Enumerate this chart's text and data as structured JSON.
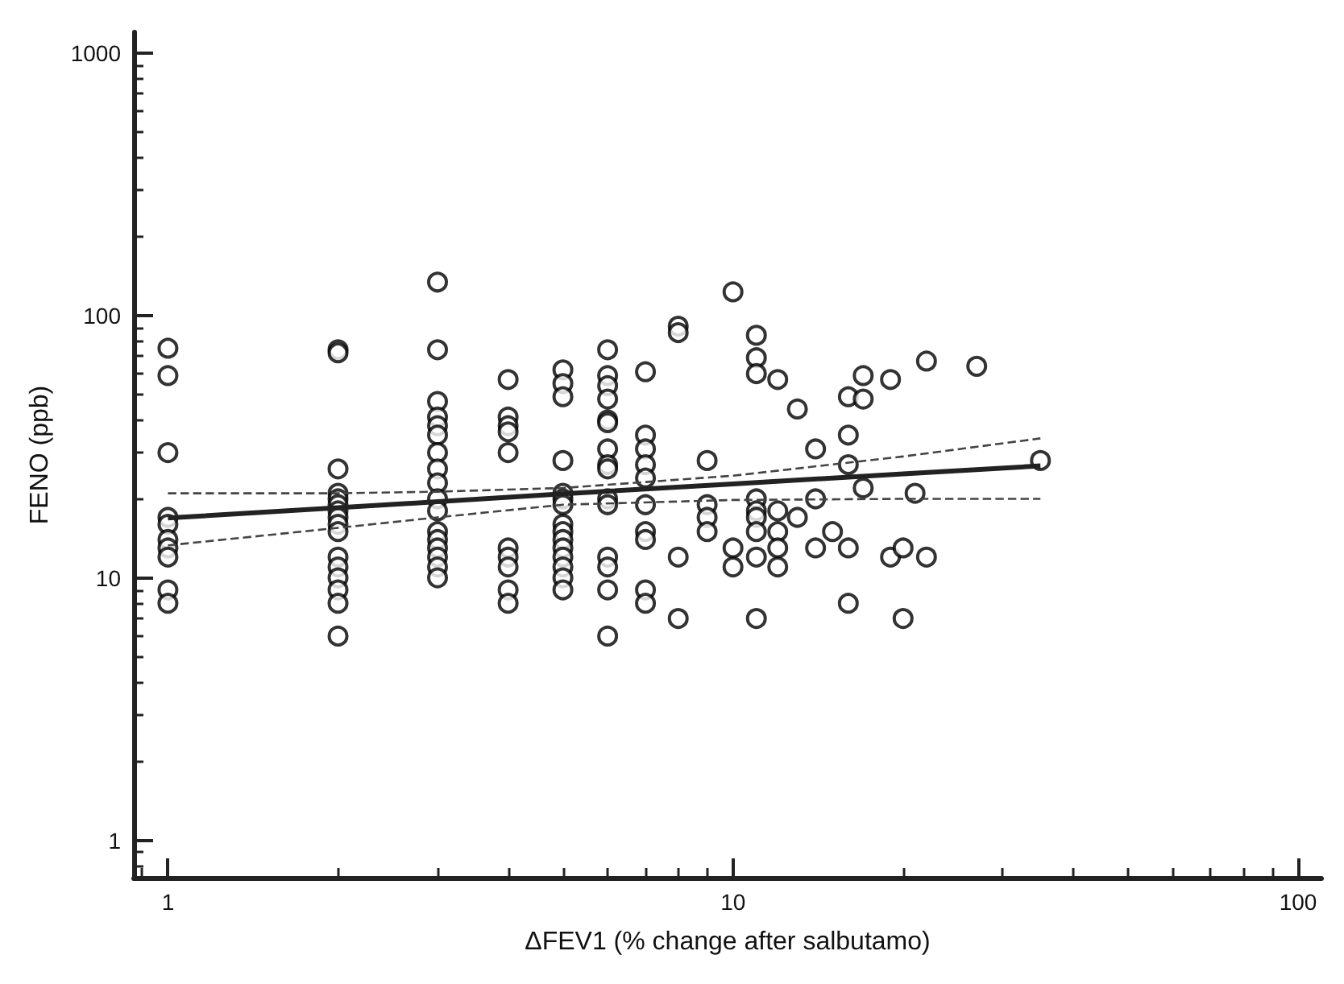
{
  "chart_data": {
    "type": "scatter",
    "xlabel": "ΔFEV1 (% change after salbutamo)",
    "ylabel": "FENO (ppb)",
    "log": "xy",
    "grid": false,
    "xlim": [
      0.87,
      110
    ],
    "xticks": [
      1,
      10,
      100
    ],
    "ylim": [
      0.72,
      1200
    ],
    "yticks": [
      1,
      10,
      100,
      1000
    ],
    "series": [
      {
        "marker": "circle",
        "color": "#000000",
        "x": [
          1,
          1,
          1,
          1,
          1,
          1,
          1,
          1,
          1,
          1,
          2,
          2,
          2,
          2,
          2,
          2,
          2,
          2,
          2,
          2,
          2,
          2,
          2,
          2,
          2,
          2,
          3,
          3,
          3,
          3,
          3,
          3,
          3,
          3,
          3,
          3,
          3,
          3,
          3,
          3,
          3,
          3,
          3,
          4,
          4,
          4,
          4,
          4,
          4,
          4,
          4,
          4,
          4,
          5,
          5,
          5,
          5,
          5,
          5,
          5,
          5,
          5,
          5,
          5,
          5,
          5,
          5,
          5,
          6,
          6,
          6,
          6,
          6,
          6,
          6,
          6,
          6,
          6,
          6,
          6,
          6,
          6,
          6,
          7,
          7,
          7,
          7,
          7,
          7,
          7,
          7,
          7,
          7,
          8,
          8,
          8,
          8,
          9,
          9,
          9,
          9,
          10,
          10,
          10,
          11,
          11,
          11,
          11,
          11,
          11,
          11,
          11,
          11,
          12,
          12,
          12,
          12,
          12,
          13,
          13,
          14,
          14,
          14,
          15,
          16,
          16,
          16,
          16,
          16,
          17,
          17,
          17,
          19,
          19,
          20,
          20,
          21,
          22,
          22,
          27,
          35
        ],
        "values": [
          75,
          59,
          30,
          17,
          16,
          14,
          13,
          12,
          9,
          8,
          74,
          72,
          26,
          21,
          20,
          19,
          18,
          17,
          16,
          15,
          12,
          11,
          10,
          9,
          8,
          6,
          134,
          74,
          47,
          41,
          38,
          35,
          30,
          26,
          23,
          20,
          18,
          15,
          14,
          13,
          12,
          11,
          10,
          57,
          41,
          38,
          36,
          30,
          13,
          12,
          11,
          9,
          8,
          62,
          55,
          49,
          28,
          21,
          20,
          19,
          16,
          15,
          14,
          13,
          12,
          11,
          10,
          9,
          74,
          59,
          54,
          48,
          40,
          39,
          31,
          27,
          26,
          20,
          19,
          12,
          11,
          9,
          6,
          61,
          35,
          31,
          27,
          24,
          19,
          15,
          14,
          9,
          8,
          91,
          86,
          12,
          7,
          28,
          19,
          17,
          15,
          123,
          13,
          11,
          84,
          69,
          60,
          20,
          18,
          17,
          15,
          12,
          7,
          57,
          18,
          15,
          13,
          11,
          44,
          17,
          31,
          20,
          13,
          15,
          49,
          35,
          27,
          13,
          8,
          59,
          48,
          22,
          57,
          12,
          13,
          7,
          21,
          67,
          12,
          64,
          28
        ]
      },
      {
        "type": "line",
        "marker": "none",
        "line_style": "solid",
        "color": "#222222",
        "x": [
          1,
          2,
          3,
          5,
          10,
          20,
          35
        ],
        "values": [
          16.9,
          18.5,
          19.5,
          20.9,
          22.8,
          24.9,
          26.7
        ]
      },
      {
        "type": "line",
        "marker": "none",
        "line_style": "dashed",
        "color": "#444444",
        "x": [
          1,
          2,
          3,
          5,
          10,
          20,
          35
        ],
        "values": [
          21,
          21,
          21.3,
          22,
          24.5,
          29,
          34
        ]
      },
      {
        "type": "line",
        "marker": "none",
        "line_style": "dashed",
        "color": "#444444",
        "x": [
          1,
          2,
          3,
          5,
          10,
          20,
          35
        ],
        "values": [
          13.3,
          15.5,
          17,
          19,
          19.8,
          20,
          20
        ]
      }
    ]
  }
}
